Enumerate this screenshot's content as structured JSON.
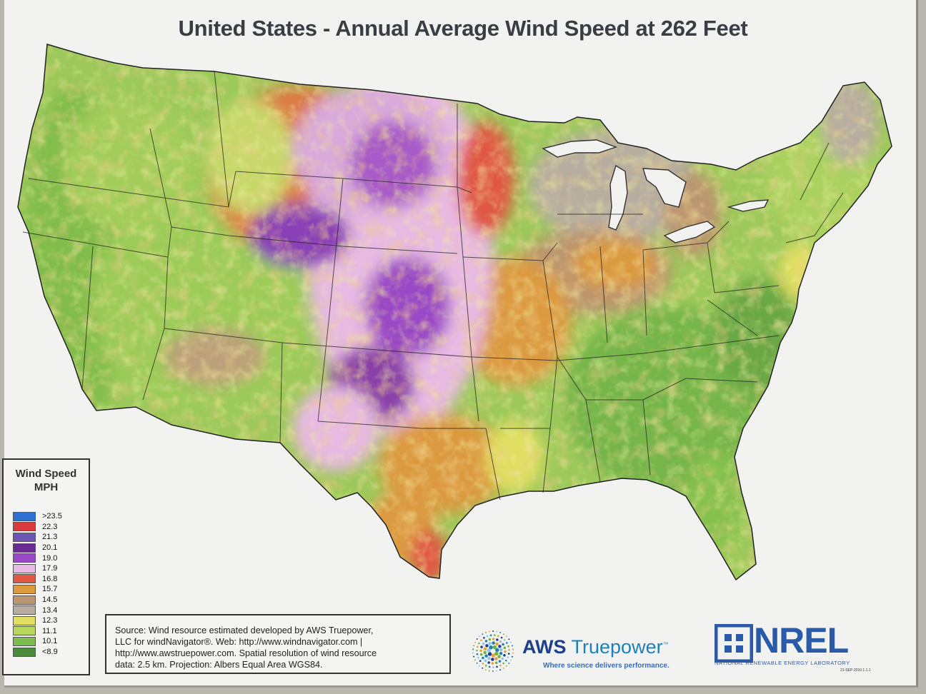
{
  "title": "United States - Annual Average Wind Speed at 262 Feet",
  "legend": {
    "title_line1": "Wind Speed",
    "title_line2": "MPH",
    "items": [
      {
        "label": ">23.5",
        "color": "#2f6fcf"
      },
      {
        "label": "22.3",
        "color": "#d93a3e"
      },
      {
        "label": "21.3",
        "color": "#6c55b5"
      },
      {
        "label": "20.1",
        "color": "#6b2b95"
      },
      {
        "label": "19.0",
        "color": "#9a48c6"
      },
      {
        "label": "17.9",
        "color": "#e7b9e3"
      },
      {
        "label": "16.8",
        "color": "#e05944"
      },
      {
        "label": "15.7",
        "color": "#dc9a3f"
      },
      {
        "label": "14.5",
        "color": "#bb9670"
      },
      {
        "label": "13.4",
        "color": "#b7aea0"
      },
      {
        "label": "12.3",
        "color": "#e0df62"
      },
      {
        "label": "11.1",
        "color": "#b7d65c"
      },
      {
        "label": "10.1",
        "color": "#7dbd4f"
      },
      {
        "label": "<8.9",
        "color": "#4a8c3b"
      }
    ]
  },
  "source": {
    "line1": "Source: Wind resource estimated developed by AWS Truepower,",
    "line2": "LLC for windNavigator®. Web: http://www.windnavigator.com |",
    "line3": "http://www.awstruepower.com. Spatial resolution of wind resource",
    "line4": "data: 2.5 km. Projection: Albers Equal Area WGS84."
  },
  "aws": {
    "name_part1": "AWS",
    "name_part2": "Truepower",
    "tm": "™",
    "tagline": "Where science delivers performance."
  },
  "nrel": {
    "name": "NREL",
    "tagline": "NATIONAL RENEWABLE ENERGY LABORATORY",
    "date": "21-SEP-2010 1.1.1"
  }
}
